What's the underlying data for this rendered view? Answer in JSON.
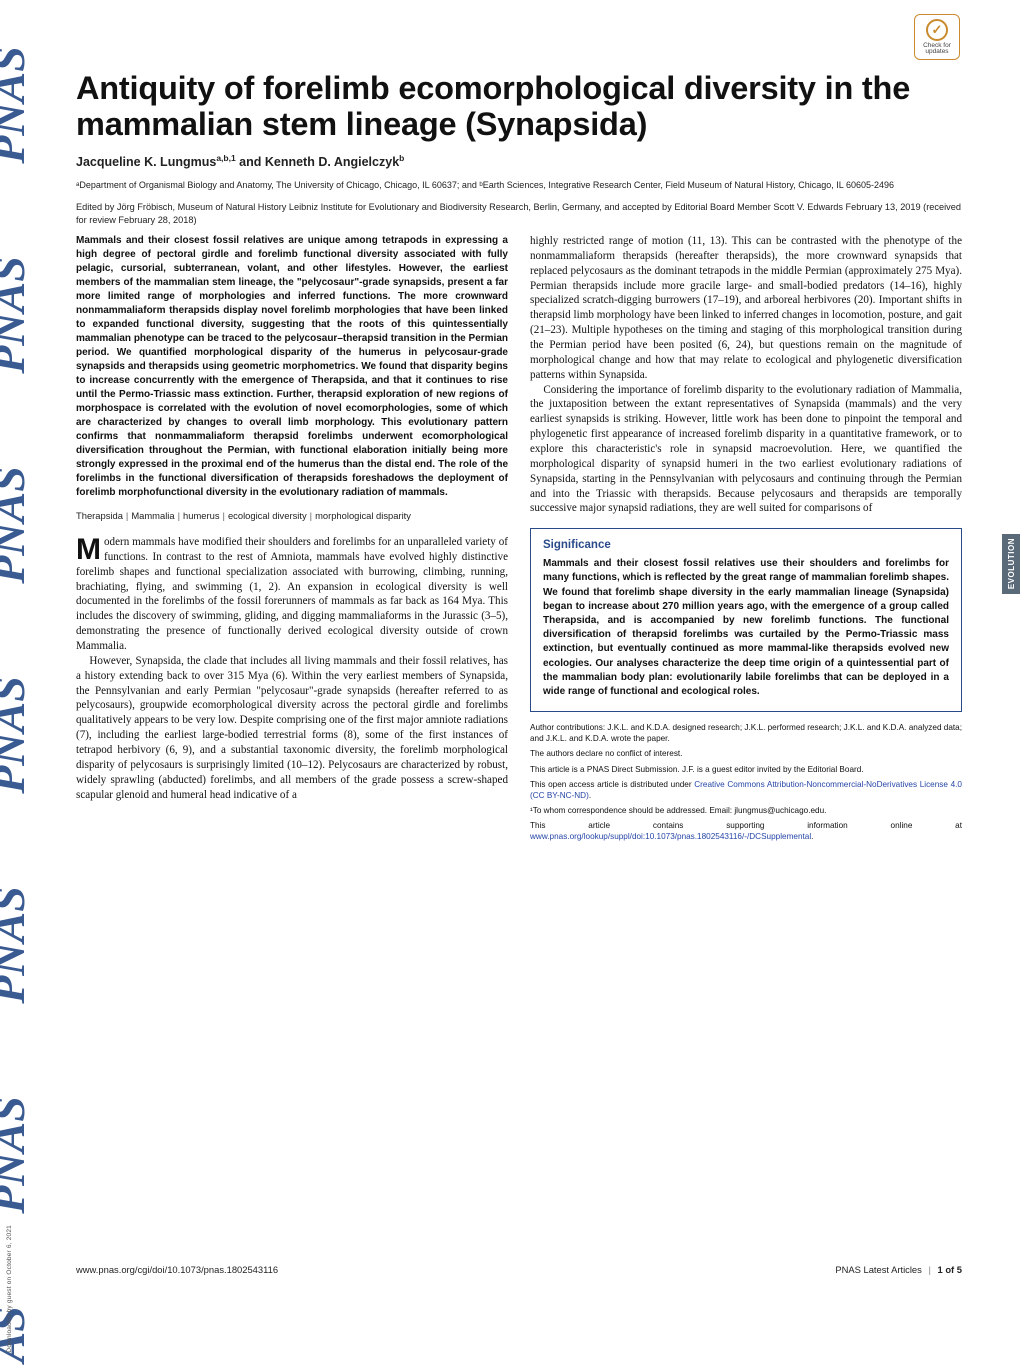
{
  "badge": {
    "line1": "Check for",
    "line2": "updates"
  },
  "side_download": "Downloaded by guest on October 6, 2021",
  "side_tab": "EVOLUTION",
  "title": "Antiquity of forelimb ecomorphological diversity in the mammalian stem lineage (Synapsida)",
  "authors_html": "Jacqueline K. Lungmus<sup>a,b,1</sup> and Kenneth D. Angielczyk<sup>b</sup>",
  "affiliations": "ᵃDepartment of Organismal Biology and Anatomy, The University of Chicago, Chicago, IL 60637; and ᵇEarth Sciences, Integrative Research Center, Field Museum of Natural History, Chicago, IL 60605-2496",
  "edited": "Edited by Jörg Fröbisch, Museum of Natural History Leibniz Institute for Evolutionary and Biodiversity Research, Berlin, Germany, and accepted by Editorial Board Member Scott V. Edwards February 13, 2019 (received for review February 28, 2018)",
  "abstract": "Mammals and their closest fossil relatives are unique among tetrapods in expressing a high degree of pectoral girdle and forelimb functional diversity associated with fully pelagic, cursorial, subterranean, volant, and other lifestyles. However, the earliest members of the mammalian stem lineage, the \"pelycosaur\"-grade synapsids, present a far more limited range of morphologies and inferred functions. The more crownward nonmammaliaform therapsids display novel forelimb morphologies that have been linked to expanded functional diversity, suggesting that the roots of this quintessentially mammalian phenotype can be traced to the pelycosaur–therapsid transition in the Permian period. We quantified morphological disparity of the humerus in pelycosaur-grade synapsids and therapsids using geometric morphometrics. We found that disparity begins to increase concurrently with the emergence of Therapsida, and that it continues to rise until the Permo-Triassic mass extinction. Further, therapsid exploration of new regions of morphospace is correlated with the evolution of novel ecomorphologies, some of which are characterized by changes to overall limb morphology. This evolutionary pattern confirms that nonmammaliaform therapsid forelimbs underwent ecomorphological diversification throughout the Permian, with functional elaboration initially being more strongly expressed in the proximal end of the humerus than the distal end. The role of the forelimbs in the functional diversification of therapsids foreshadows the deployment of forelimb morphofunctional diversity in the evolutionary radiation of mammals.",
  "keywords": [
    "Therapsida",
    "Mammalia",
    "humerus",
    "ecological diversity",
    "morphological disparity"
  ],
  "body_p1": "Modern mammals have modified their shoulders and forelimbs for an unparalleled variety of functions. In contrast to the rest of Amniota, mammals have evolved highly distinctive forelimb shapes and functional specialization associated with burrowing, climbing, running, brachiating, flying, and swimming (1, 2). An expansion in ecological diversity is well documented in the forelimbs of the fossil forerunners of mammals as far back as 164 Mya. This includes the discovery of swimming, gliding, and digging mammaliaforms in the Jurassic (3–5), demonstrating the presence of functionally derived ecological diversity outside of crown Mammalia.",
  "body_p2": "However, Synapsida, the clade that includes all living mammals and their fossil relatives, has a history extending back to over 315 Mya (6). Within the very earliest members of Synapsida, the Pennsylvanian and early Permian \"pelycosaur\"-grade synapsids (hereafter referred to as pelycosaurs), groupwide ecomorphological diversity across the pectoral girdle and forelimbs qualitatively appears to be very low. Despite comprising one of the first major amniote radiations (7), including the earliest large-bodied terrestrial forms (8), some of the first instances of tetrapod herbivory (6, 9), and a substantial taxonomic diversity, the forelimb morphological disparity of pelycosaurs is surprisingly limited (10–12). Pelycosaurs are characterized by robust, widely sprawling (abducted) forelimbs, and all members of the grade possess a screw-shaped scapular glenoid and humeral head indicative of a",
  "body_col2_p1": "highly restricted range of motion (11, 13). This can be contrasted with the phenotype of the nonmammaliaform therapsids (hereafter therapsids), the more crownward synapsids that replaced pelycosaurs as the dominant tetrapods in the middle Permian (approximately 275 Mya). Permian therapsids include more gracile large- and small-bodied predators (14–16), highly specialized scratch-digging burrowers (17–19), and arboreal herbivores (20). Important shifts in therapsid limb morphology have been linked to inferred changes in locomotion, posture, and gait (21–23). Multiple hypotheses on the timing and staging of this morphological transition during the Permian period have been posited (6, 24), but questions remain on the magnitude of morphological change and how that may relate to ecological and phylogenetic diversification patterns within Synapsida.",
  "body_col2_p2": "Considering the importance of forelimb disparity to the evolutionary radiation of Mammalia, the juxtaposition between the extant representatives of Synapsida (mammals) and the very earliest synapsids is striking. However, little work has been done to pinpoint the temporal and phylogenetic first appearance of increased forelimb disparity in a quantitative framework, or to explore this characteristic's role in synapsid macroevolution. Here, we quantified the morphological disparity of synapsid humeri in the two earliest evolutionary radiations of Synapsida, starting in the Pennsylvanian with pelycosaurs and continuing through the Permian and into the Triassic with therapsids. Because pelycosaurs and therapsids are temporally successive major synapsid radiations, they are well suited for comparisons of",
  "significance": {
    "heading": "Significance",
    "text": "Mammals and their closest fossil relatives use their shoulders and forelimbs for many functions, which is reflected by the great range of mammalian forelimb shapes. We found that forelimb shape diversity in the early mammalian lineage (Synapsida) began to increase about 270 million years ago, with the emergence of a group called Therapsida, and is accompanied by new forelimb functions. The functional diversification of therapsid forelimbs was curtailed by the Permo-Triassic mass extinction, but eventually continued as more mammal-like therapsids evolved new ecologies. Our analyses characterize the deep time origin of a quintessential part of the mammalian body plan: evolutionarily labile forelimbs that can be deployed in a wide range of functional and ecological roles."
  },
  "footnotes": {
    "contrib": "Author contributions: J.K.L. and K.D.A. designed research; J.K.L. performed research; J.K.L. and K.D.A. analyzed data; and J.K.L. and K.D.A. wrote the paper.",
    "coi": "The authors declare no conflict of interest.",
    "direct": "This article is a PNAS Direct Submission. J.F. is a guest editor invited by the Editorial Board.",
    "oa_pre": "This open access article is distributed under ",
    "oa_link": "Creative Commons Attribution-Noncommercial-NoDerivatives License 4.0 (CC BY-NC-ND)",
    "corr": "¹To whom correspondence should be addressed. Email: jlungmus@uchicago.edu.",
    "si_pre": "This article contains supporting information online at ",
    "si_link": "www.pnas.org/lookup/suppl/doi:10.1073/pnas.1802543116/-/DCSupplemental"
  },
  "footer": {
    "doi": "www.pnas.org/cgi/doi/10.1073/pnas.1802543116",
    "right_l": "PNAS Latest Articles",
    "right_r": "1 of 5"
  },
  "colors": {
    "accent_blue": "#2a4a8a",
    "link_blue": "#2646a7",
    "badge_orange": "#c98b2e",
    "tab_gray": "#5a6a78"
  }
}
